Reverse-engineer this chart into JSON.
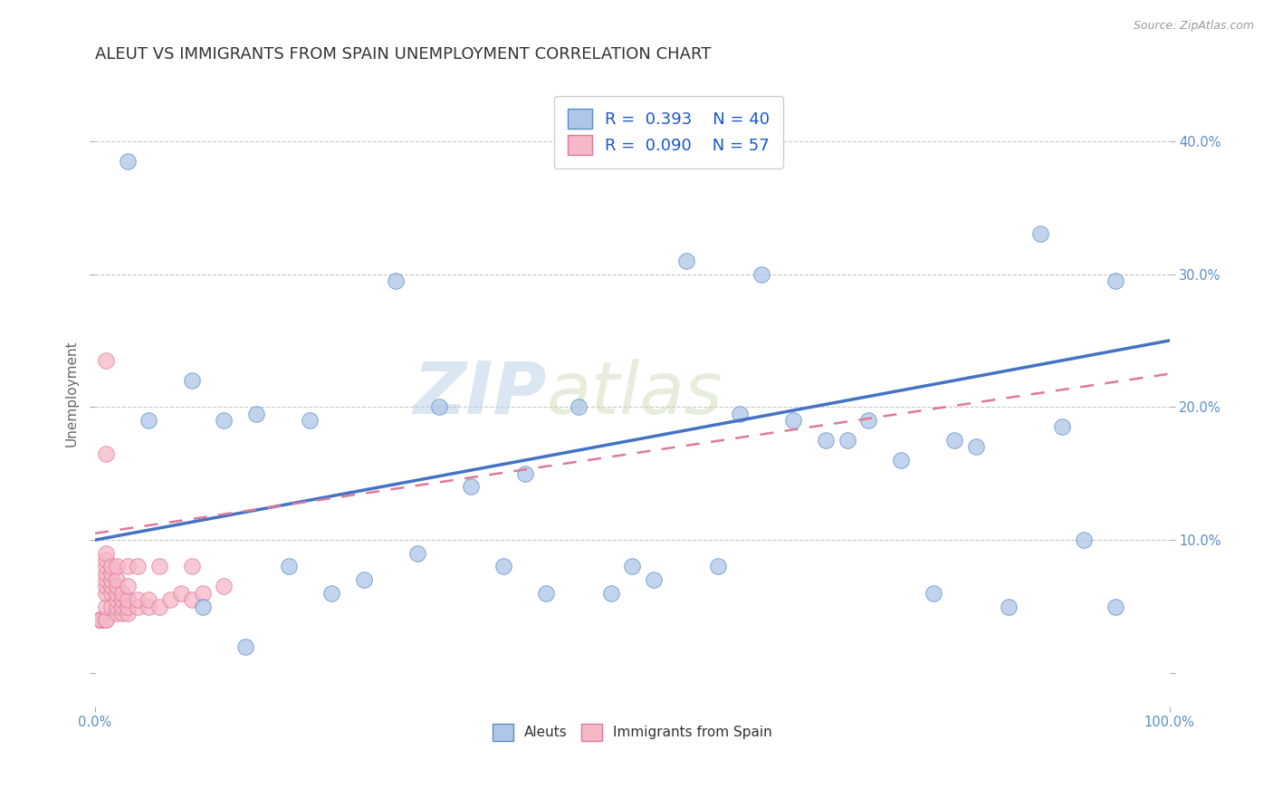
{
  "title": "ALEUT VS IMMIGRANTS FROM SPAIN UNEMPLOYMENT CORRELATION CHART",
  "source": "Source: ZipAtlas.com",
  "ylabel": "Unemployment",
  "watermark_zip": "ZIP",
  "watermark_atlas": "atlas",
  "legend_r1": "R =  0.393",
  "legend_n1": "N = 40",
  "legend_r2": "R =  0.090",
  "legend_n2": "N = 57",
  "aleut_color": "#aec6e8",
  "spain_color": "#f5b8c8",
  "aleut_edge_color": "#5b8ec4",
  "spain_edge_color": "#e07898",
  "aleut_line_color": "#4472c4",
  "spain_line_color": "#e07898",
  "background_color": "#ffffff",
  "grid_color": "#c8c8c8",
  "yticks": [
    0.0,
    0.1,
    0.2,
    0.3,
    0.4
  ],
  "ytick_labels_right": [
    "",
    "10.0%",
    "20.0%",
    "30.0%",
    "40.0%"
  ],
  "xlim": [
    0.0,
    1.0
  ],
  "ylim": [
    -0.025,
    0.445
  ],
  "aleut_x": [
    0.03,
    0.05,
    0.09,
    0.12,
    0.14,
    0.18,
    0.22,
    0.25,
    0.3,
    0.35,
    0.4,
    0.42,
    0.48,
    0.52,
    0.55,
    0.58,
    0.62,
    0.65,
    0.68,
    0.7,
    0.72,
    0.75,
    0.78,
    0.82,
    0.85,
    0.88,
    0.92,
    0.95,
    0.1,
    0.15,
    0.2,
    0.28,
    0.32,
    0.38,
    0.45,
    0.5,
    0.6,
    0.8,
    0.9,
    0.95
  ],
  "aleut_y": [
    0.385,
    0.19,
    0.22,
    0.19,
    0.02,
    0.08,
    0.06,
    0.07,
    0.09,
    0.14,
    0.15,
    0.06,
    0.06,
    0.07,
    0.31,
    0.08,
    0.3,
    0.19,
    0.175,
    0.175,
    0.19,
    0.16,
    0.06,
    0.17,
    0.05,
    0.33,
    0.1,
    0.295,
    0.05,
    0.195,
    0.19,
    0.295,
    0.2,
    0.08,
    0.2,
    0.08,
    0.195,
    0.175,
    0.185,
    0.05
  ],
  "spain_x": [
    0.005,
    0.005,
    0.005,
    0.005,
    0.005,
    0.005,
    0.005,
    0.005,
    0.005,
    0.005,
    0.01,
    0.01,
    0.01,
    0.01,
    0.01,
    0.01,
    0.01,
    0.01,
    0.01,
    0.01,
    0.015,
    0.015,
    0.015,
    0.015,
    0.015,
    0.015,
    0.02,
    0.02,
    0.02,
    0.02,
    0.02,
    0.02,
    0.025,
    0.025,
    0.025,
    0.025,
    0.03,
    0.03,
    0.03,
    0.03,
    0.04,
    0.04,
    0.05,
    0.05,
    0.06,
    0.07,
    0.08,
    0.09,
    0.1,
    0.12,
    0.01,
    0.01,
    0.02,
    0.03,
    0.04,
    0.06,
    0.09
  ],
  "spain_y": [
    0.04,
    0.04,
    0.04,
    0.04,
    0.04,
    0.04,
    0.04,
    0.04,
    0.04,
    0.04,
    0.04,
    0.04,
    0.05,
    0.06,
    0.065,
    0.07,
    0.075,
    0.08,
    0.085,
    0.09,
    0.05,
    0.06,
    0.065,
    0.07,
    0.075,
    0.08,
    0.045,
    0.05,
    0.055,
    0.06,
    0.065,
    0.07,
    0.045,
    0.05,
    0.055,
    0.06,
    0.045,
    0.05,
    0.055,
    0.065,
    0.05,
    0.055,
    0.05,
    0.055,
    0.05,
    0.055,
    0.06,
    0.055,
    0.06,
    0.065,
    0.165,
    0.235,
    0.08,
    0.08,
    0.08,
    0.08,
    0.08
  ],
  "aleut_line_y0": 0.1,
  "aleut_line_y1": 0.25,
  "spain_line_y0": 0.105,
  "spain_line_y1": 0.225,
  "title_fontsize": 13,
  "label_fontsize": 11,
  "tick_fontsize": 10.5,
  "legend_fontsize": 13
}
